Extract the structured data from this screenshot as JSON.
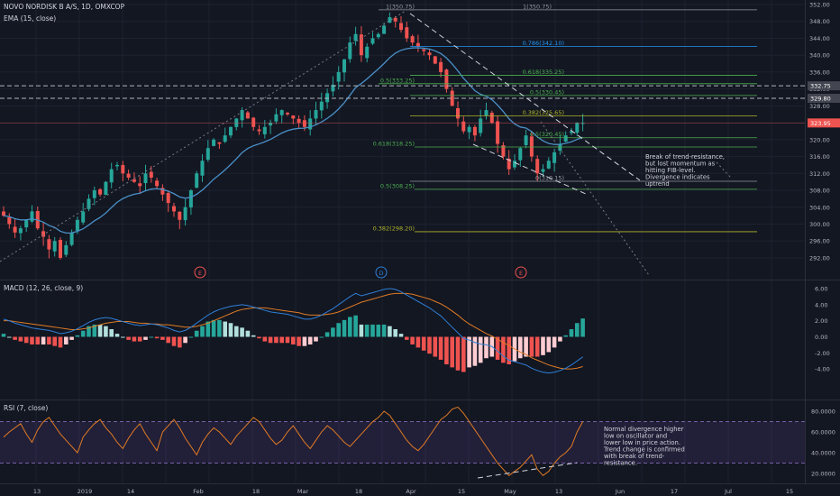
{
  "header": {
    "symbol": "NOVO NORDISK B A/S, 1D, OMXCOP",
    "ema": "EMA (15, close)",
    "macd": "MACD (12, 26, close, 9)",
    "rsi": "RSI (7, close)"
  },
  "colors": {
    "background": "#131722",
    "up": "#26a69a",
    "down": "#ef5350",
    "ema": "#4a90c8",
    "macd_line": "#2f7fd6",
    "signal_line": "#e07b24",
    "rsi_line": "#e07b24",
    "fib_green": "#4caf50",
    "fib_blue": "#2196f3",
    "fib_olive": "#afb42b"
  },
  "chart_data": [
    {
      "type": "candlestick",
      "ylim": [
        289,
        352
      ],
      "yticks": [
        "352.00",
        "348.00",
        "344.00",
        "340.00",
        "336.00",
        "332.00",
        "328.00",
        "324.00",
        "320.00",
        "316.00",
        "312.00",
        "308.00",
        "304.00",
        "300.00",
        "296.00",
        "292.00"
      ],
      "x_labels": [
        "13",
        "2019",
        "14",
        "Feb",
        "18",
        "Mar",
        "18",
        "Apr",
        "15",
        "May",
        "13",
        "Jun",
        "17",
        "Jul",
        "15"
      ],
      "price_tags": [
        {
          "value": 332.75,
          "text": "332.75"
        },
        {
          "value": 329.8,
          "text": "329.80"
        },
        {
          "value": 323.95,
          "text": "323.95"
        }
      ],
      "fib_levels": [
        {
          "label": "1(350.75)",
          "value": 350.75,
          "color": "#9598a1"
        },
        {
          "label": "0.786(342.10)",
          "value": 342.1,
          "color": "#2196f3"
        },
        {
          "label": "0.618(335.25)",
          "value": 335.25,
          "color": "#4caf50"
        },
        {
          "label": "0.5(330.45)",
          "value": 330.45,
          "color": "#4caf50"
        },
        {
          "label": "0.382(325.65)",
          "value": 325.65,
          "color": "#afb42b"
        },
        {
          "label": "0(310.15)",
          "value": 310.15,
          "color": "#9598a1"
        },
        {
          "label": "1(350.75)",
          "value": 350.75,
          "color": "#9598a1"
        },
        {
          "label": "0.5(333.25)",
          "value": 333.25,
          "color": "#4caf50"
        },
        {
          "label": "0.618(318.25)",
          "value": 318.25,
          "color": "#4caf50"
        },
        {
          "label": "0.5(308.25)",
          "value": 308.25,
          "color": "#4caf50"
        },
        {
          "label": "0.382(298.20)",
          "value": 298.2,
          "color": "#afb42b"
        },
        {
          "label": "0.5(320.45)",
          "value": 320.45,
          "color": "#4caf50"
        }
      ],
      "events": [
        "E",
        "D",
        "E"
      ],
      "close_trend": [
        302,
        300,
        298,
        299,
        301,
        303,
        299,
        297,
        294,
        296,
        292,
        295,
        298,
        301,
        303,
        306,
        308,
        307,
        310,
        313,
        314,
        312,
        311,
        310,
        309,
        312,
        311,
        309,
        307,
        305,
        303,
        301,
        304,
        308,
        312,
        315,
        318,
        320,
        319,
        321,
        323,
        325,
        327,
        325,
        323,
        322,
        323,
        324,
        326,
        327,
        326,
        325,
        324,
        323,
        325,
        327,
        329,
        331,
        333,
        336,
        339,
        343,
        345,
        340,
        342,
        344,
        345,
        347,
        349,
        348,
        346,
        344,
        343,
        342,
        341,
        340,
        338,
        336,
        332,
        328,
        325,
        322,
        323,
        321,
        325,
        327,
        324,
        319,
        316,
        313,
        315,
        318,
        321,
        316,
        312,
        313,
        315,
        317,
        319,
        321,
        322,
        324,
        323.95
      ],
      "annotation": [
        "Break of trend-resistance,",
        "but lost momentum as",
        "hitting FIB-level.",
        "Divergence indicates",
        "uptrend"
      ]
    },
    {
      "type": "macd",
      "ylim": [
        -5.2,
        6.4
      ],
      "yticks": [
        "6.00",
        "4.00",
        "2.00",
        "0.00",
        "-2.00",
        "-4.00"
      ],
      "macd": [
        2.2,
        2.0,
        1.7,
        1.5,
        1.3,
        1.1,
        1.0,
        0.9,
        0.8,
        0.6,
        0.4,
        0.5,
        0.7,
        1.0,
        1.4,
        1.8,
        2.1,
        2.3,
        2.4,
        2.3,
        2.1,
        1.9,
        1.7,
        1.5,
        1.4,
        1.5,
        1.6,
        1.5,
        1.3,
        1.1,
        0.8,
        0.6,
        0.8,
        1.2,
        1.7,
        2.2,
        2.7,
        3.1,
        3.4,
        3.6,
        3.8,
        3.9,
        4.0,
        3.9,
        3.7,
        3.5,
        3.3,
        3.1,
        3.0,
        2.9,
        2.8,
        2.6,
        2.4,
        2.2,
        2.2,
        2.4,
        2.7,
        3.1,
        3.5,
        4.0,
        4.5,
        5.0,
        5.4,
        5.1,
        5.3,
        5.5,
        5.7,
        5.9,
        6.0,
        5.9,
        5.6,
        5.2,
        4.8,
        4.4,
        4.0,
        3.6,
        3.1,
        2.6,
        1.9,
        1.2,
        0.5,
        -0.2,
        -0.4,
        -0.7,
        -0.9,
        -1.0,
        -1.2,
        -1.8,
        -2.4,
        -2.9,
        -3.1,
        -3.3,
        -3.5,
        -3.9,
        -4.2,
        -4.4,
        -4.5,
        -4.4,
        -4.2,
        -3.9,
        -3.5,
        -3.0,
        -2.5
      ],
      "signal": [
        2.0,
        2.0,
        1.9,
        1.8,
        1.7,
        1.6,
        1.5,
        1.4,
        1.3,
        1.2,
        1.1,
        1.0,
        0.9,
        0.9,
        1.0,
        1.1,
        1.3,
        1.5,
        1.7,
        1.8,
        1.9,
        1.9,
        1.9,
        1.8,
        1.7,
        1.7,
        1.6,
        1.6,
        1.5,
        1.5,
        1.4,
        1.3,
        1.2,
        1.2,
        1.3,
        1.5,
        1.7,
        2.0,
        2.3,
        2.6,
        2.9,
        3.2,
        3.4,
        3.5,
        3.6,
        3.6,
        3.6,
        3.5,
        3.4,
        3.3,
        3.2,
        3.1,
        3.0,
        2.8,
        2.7,
        2.7,
        2.7,
        2.8,
        2.9,
        3.1,
        3.4,
        3.7,
        4.0,
        4.3,
        4.5,
        4.7,
        4.9,
        5.1,
        5.3,
        5.4,
        5.4,
        5.4,
        5.3,
        5.1,
        4.9,
        4.7,
        4.4,
        4.1,
        3.7,
        3.2,
        2.7,
        2.1,
        1.6,
        1.2,
        0.8,
        0.4,
        0.1,
        -0.3,
        -0.7,
        -1.1,
        -1.5,
        -1.9,
        -2.2,
        -2.6,
        -2.9,
        -3.2,
        -3.5,
        -3.7,
        -3.9,
        -4.0,
        -4.0,
        -3.9,
        -3.7
      ]
    },
    {
      "type": "rsi",
      "ylim": [
        14,
        88
      ],
      "yticks": [
        "80.0000",
        "60.0000",
        "40.0000",
        "20.0000"
      ],
      "band": [
        30,
        70
      ],
      "values": [
        55,
        60,
        64,
        68,
        58,
        50,
        62,
        70,
        74,
        66,
        58,
        52,
        46,
        40,
        55,
        62,
        68,
        72,
        64,
        58,
        50,
        44,
        54,
        62,
        68,
        58,
        50,
        42,
        60,
        66,
        72,
        64,
        54,
        46,
        38,
        50,
        58,
        64,
        60,
        54,
        48,
        56,
        62,
        68,
        74,
        70,
        62,
        54,
        48,
        52,
        60,
        66,
        58,
        50,
        44,
        52,
        60,
        66,
        62,
        56,
        50,
        46,
        52,
        58,
        64,
        70,
        74,
        80,
        76,
        68,
        60,
        52,
        46,
        42,
        48,
        56,
        64,
        72,
        76,
        82,
        84,
        78,
        70,
        62,
        54,
        46,
        38,
        30,
        24,
        18,
        22,
        26,
        32,
        38,
        24,
        18,
        22,
        30,
        36,
        40,
        46,
        60,
        70
      ],
      "annotation": [
        "Normal divergence higher",
        "low on oscillator and",
        "lower low in price action.",
        "Trend change is confirmed",
        "with break of trend-",
        "resistance."
      ]
    }
  ]
}
